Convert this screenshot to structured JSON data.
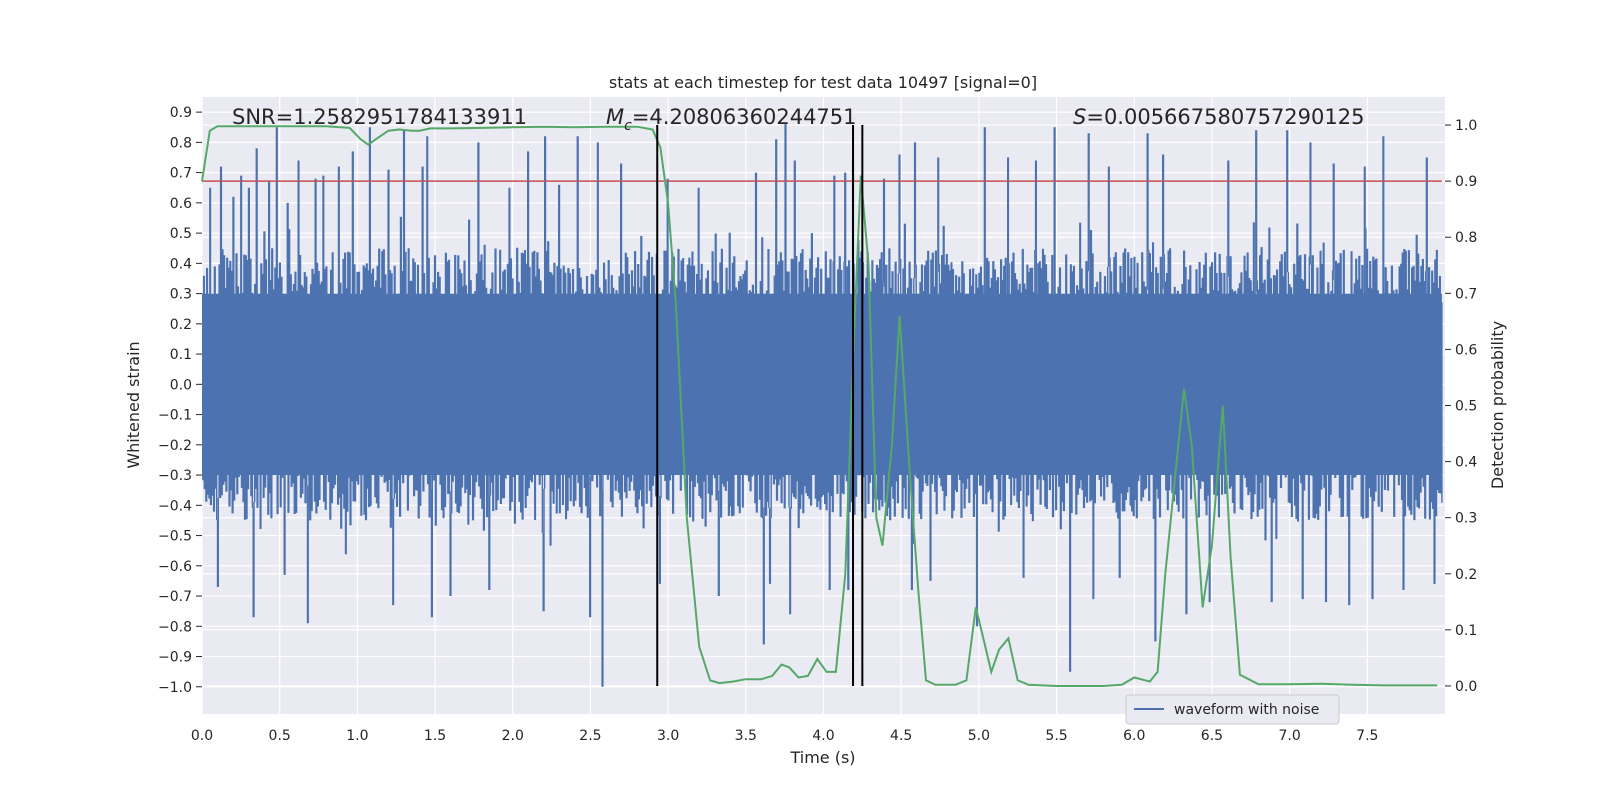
{
  "chart_data": {
    "type": "line",
    "title": "stats at each timestep for test data 10497 [signal=0]",
    "xlabel": "Time (s)",
    "ylabel": "Whitened strain",
    "y2label": "Detection probability",
    "xlim": [
      0.0,
      8.0
    ],
    "ylim": [
      -1.09,
      0.95
    ],
    "y2lim": [
      -0.05,
      1.05
    ],
    "x_ticks": [
      "0.0",
      "0.5",
      "1.0",
      "1.5",
      "2.0",
      "2.5",
      "3.0",
      "3.5",
      "4.0",
      "4.5",
      "5.0",
      "5.5",
      "6.0",
      "6.5",
      "7.0",
      "7.5"
    ],
    "y_ticks": [
      "0.9",
      "0.8",
      "0.7",
      "0.6",
      "0.5",
      "0.4",
      "0.3",
      "0.2",
      "0.1",
      "0.0",
      "-0.1",
      "-0.2",
      "-0.3",
      "-0.4",
      "-0.5",
      "-0.6",
      "-0.7",
      "-0.8",
      "-0.9",
      "-1.0"
    ],
    "y2_ticks": [
      "1.0",
      "0.9",
      "0.8",
      "0.7",
      "0.6",
      "0.5",
      "0.4",
      "0.3",
      "0.2",
      "0.1",
      "0.0"
    ],
    "annotations": {
      "snr": "SNR=1.2582951784133911",
      "mc_symbol": "M",
      "mc_sub": "c",
      "mc_value": "=4.20806360244751",
      "s_symbol": "S",
      "s_value": "=0.005667580757290125"
    },
    "legend": {
      "label": "waveform with noise",
      "placement": "lower-right"
    },
    "threshold": {
      "value": 0.9,
      "axis": "right",
      "color": "#c44e52"
    },
    "vertical_lines": [
      2.93,
      4.19,
      4.25
    ],
    "waveform": {
      "name": "waveform with noise",
      "color": "#4c72b0",
      "samples": 1600,
      "envelope_typical": 0.45,
      "spikes": [
        [
          0.05,
          0.65
        ],
        [
          0.12,
          0.72
        ],
        [
          0.2,
          0.62
        ],
        [
          0.25,
          0.69
        ],
        [
          0.3,
          0.65
        ],
        [
          0.35,
          0.78
        ],
        [
          0.43,
          0.67
        ],
        [
          0.48,
          0.85
        ],
        [
          0.55,
          0.6
        ],
        [
          0.62,
          0.74
        ],
        [
          0.73,
          0.68
        ],
        [
          0.78,
          0.69
        ],
        [
          0.88,
          0.72
        ],
        [
          0.97,
          0.77
        ],
        [
          1.08,
          0.85
        ],
        [
          1.2,
          0.71
        ],
        [
          1.3,
          0.84
        ],
        [
          1.42,
          0.72
        ],
        [
          1.45,
          0.82
        ],
        [
          1.6,
          0.78
        ],
        [
          1.78,
          0.8
        ],
        [
          1.98,
          0.65
        ],
        [
          2.1,
          0.77
        ],
        [
          2.21,
          0.82
        ],
        [
          2.3,
          0.66
        ],
        [
          2.42,
          0.82
        ],
        [
          2.5,
          0.85
        ],
        [
          2.55,
          0.8
        ],
        [
          2.7,
          0.73
        ],
        [
          3.0,
          0.68
        ],
        [
          3.2,
          0.65
        ],
        [
          3.57,
          0.7
        ],
        [
          3.7,
          0.81
        ],
        [
          3.76,
          0.86
        ],
        [
          3.82,
          0.74
        ],
        [
          4.08,
          0.69
        ],
        [
          4.15,
          0.7
        ],
        [
          4.2,
          0.74
        ],
        [
          4.4,
          0.68
        ],
        [
          4.5,
          0.76
        ],
        [
          4.6,
          0.8
        ],
        [
          4.75,
          0.75
        ],
        [
          5.05,
          0.85
        ],
        [
          5.2,
          0.75
        ],
        [
          5.38,
          0.74
        ],
        [
          5.5,
          0.85
        ],
        [
          5.72,
          0.83
        ],
        [
          5.85,
          0.72
        ],
        [
          6.1,
          0.83
        ],
        [
          6.2,
          0.76
        ],
        [
          6.35,
          0.82
        ],
        [
          6.5,
          0.84
        ],
        [
          6.62,
          0.74
        ],
        [
          6.8,
          0.84
        ],
        [
          7.0,
          0.84
        ],
        [
          7.15,
          0.8
        ],
        [
          7.3,
          0.73
        ],
        [
          7.5,
          0.72
        ],
        [
          7.62,
          0.82
        ],
        [
          7.9,
          0.75
        ],
        [
          0.1,
          -0.67
        ],
        [
          0.33,
          -0.77
        ],
        [
          0.53,
          -0.63
        ],
        [
          0.68,
          -0.79
        ],
        [
          1.23,
          -0.73
        ],
        [
          1.48,
          -0.77
        ],
        [
          1.6,
          -0.7
        ],
        [
          1.85,
          -0.68
        ],
        [
          2.2,
          -0.75
        ],
        [
          2.58,
          -1.0
        ],
        [
          2.5,
          -0.77
        ],
        [
          2.95,
          -0.66
        ],
        [
          3.33,
          -0.7
        ],
        [
          3.62,
          -0.86
        ],
        [
          3.66,
          -0.66
        ],
        [
          3.79,
          -0.76
        ],
        [
          4.05,
          -0.68
        ],
        [
          4.17,
          -0.68
        ],
        [
          4.58,
          -0.68
        ],
        [
          4.7,
          -0.65
        ],
        [
          5.0,
          -0.8
        ],
        [
          5.3,
          -0.64
        ],
        [
          5.6,
          -0.95
        ],
        [
          5.75,
          -0.71
        ],
        [
          5.92,
          -0.64
        ],
        [
          6.15,
          -0.85
        ],
        [
          6.35,
          -0.76
        ],
        [
          6.5,
          -0.72
        ],
        [
          6.9,
          -0.72
        ],
        [
          7.1,
          -0.71
        ],
        [
          7.25,
          -0.72
        ],
        [
          7.4,
          -0.73
        ],
        [
          7.55,
          -0.71
        ],
        [
          7.75,
          -0.68
        ],
        [
          7.95,
          -0.66
        ]
      ]
    },
    "series": [
      {
        "name": "Detection probability",
        "axis": "right",
        "color": "#55a868",
        "points": [
          [
            0.0,
            0.9
          ],
          [
            0.05,
            0.99
          ],
          [
            0.1,
            0.998
          ],
          [
            0.2,
            0.998
          ],
          [
            0.4,
            0.998
          ],
          [
            0.6,
            0.998
          ],
          [
            0.8,
            0.998
          ],
          [
            0.95,
            0.995
          ],
          [
            1.02,
            0.975
          ],
          [
            1.07,
            0.965
          ],
          [
            1.12,
            0.975
          ],
          [
            1.2,
            0.99
          ],
          [
            1.27,
            0.992
          ],
          [
            1.35,
            0.99
          ],
          [
            1.4,
            0.99
          ],
          [
            1.47,
            0.994
          ],
          [
            1.6,
            0.994
          ],
          [
            1.8,
            0.995
          ],
          [
            2.0,
            0.996
          ],
          [
            2.2,
            0.997
          ],
          [
            2.4,
            0.996
          ],
          [
            2.6,
            0.997
          ],
          [
            2.8,
            0.997
          ],
          [
            2.9,
            0.992
          ],
          [
            2.95,
            0.96
          ],
          [
            3.0,
            0.86
          ],
          [
            3.05,
            0.68
          ],
          [
            3.12,
            0.3
          ],
          [
            3.2,
            0.07
          ],
          [
            3.27,
            0.01
          ],
          [
            3.33,
            0.005
          ],
          [
            3.42,
            0.008
          ],
          [
            3.5,
            0.012
          ],
          [
            3.6,
            0.012
          ],
          [
            3.67,
            0.018
          ],
          [
            3.73,
            0.038
          ],
          [
            3.78,
            0.033
          ],
          [
            3.84,
            0.015
          ],
          [
            3.9,
            0.018
          ],
          [
            3.96,
            0.048
          ],
          [
            4.02,
            0.025
          ],
          [
            4.08,
            0.025
          ],
          [
            4.14,
            0.2
          ],
          [
            4.2,
            0.65
          ],
          [
            4.24,
            0.91
          ],
          [
            4.29,
            0.75
          ],
          [
            4.34,
            0.3
          ],
          [
            4.38,
            0.25
          ],
          [
            4.44,
            0.43
          ],
          [
            4.49,
            0.66
          ],
          [
            4.55,
            0.4
          ],
          [
            4.61,
            0.17
          ],
          [
            4.66,
            0.01
          ],
          [
            4.72,
            0.002
          ],
          [
            4.85,
            0.002
          ],
          [
            4.92,
            0.01
          ],
          [
            4.98,
            0.14
          ],
          [
            5.02,
            0.095
          ],
          [
            5.08,
            0.025
          ],
          [
            5.13,
            0.065
          ],
          [
            5.19,
            0.085
          ],
          [
            5.25,
            0.01
          ],
          [
            5.32,
            0.002
          ],
          [
            5.5,
            0.0
          ],
          [
            5.8,
            0.0
          ],
          [
            5.92,
            0.002
          ],
          [
            6.0,
            0.015
          ],
          [
            6.1,
            0.008
          ],
          [
            6.15,
            0.025
          ],
          [
            6.2,
            0.2
          ],
          [
            6.32,
            0.53
          ],
          [
            6.37,
            0.43
          ],
          [
            6.44,
            0.14
          ],
          [
            6.5,
            0.25
          ],
          [
            6.57,
            0.5
          ],
          [
            6.62,
            0.23
          ],
          [
            6.68,
            0.02
          ],
          [
            6.8,
            0.003
          ],
          [
            7.0,
            0.003
          ],
          [
            7.2,
            0.004
          ],
          [
            7.4,
            0.002
          ],
          [
            7.6,
            0.001
          ],
          [
            7.8,
            0.001
          ],
          [
            7.95,
            0.001
          ]
        ]
      }
    ]
  }
}
